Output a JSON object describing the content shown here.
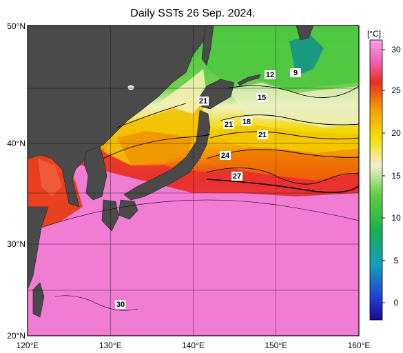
{
  "title": "Daily SSTs 26 Sep. 2024.",
  "map": {
    "lon_ticks": [
      "120°E",
      "130°E",
      "140°E",
      "150°E",
      "160°E"
    ],
    "lat_ticks": [
      "50°N",
      "40°N",
      "30°N",
      "20°N"
    ],
    "extent": {
      "lon": [
        120,
        160
      ],
      "lat": [
        20,
        50
      ]
    }
  },
  "colorbar": {
    "unit": "[°C]",
    "ticks": [
      "30",
      "25",
      "20",
      "15",
      "10",
      "5",
      "0"
    ],
    "range": [
      -2,
      31
    ]
  },
  "isotherm_labels": [
    {
      "text": "12"
    },
    {
      "text": "9"
    },
    {
      "text": "15"
    },
    {
      "text": "21"
    },
    {
      "text": "21"
    },
    {
      "text": "18"
    },
    {
      "text": "21"
    },
    {
      "text": "24"
    },
    {
      "text": "27"
    },
    {
      "text": "30"
    }
  ],
  "colors": {
    "land": "#4a4a4a",
    "warm": "#f080d8",
    "hot": "#e83030",
    "mid": "#f4c800",
    "cool": "#30c040"
  }
}
